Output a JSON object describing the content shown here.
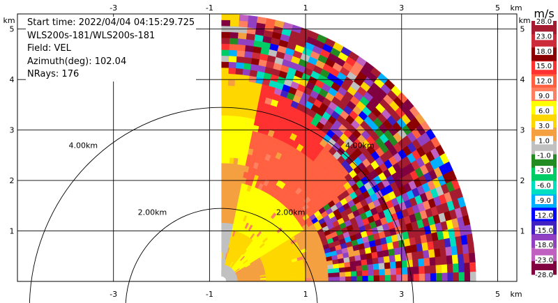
{
  "info": {
    "start_time": "Start time: 2022/04/04 04:15:29.725",
    "instrument": "WLS200s-181/WLS200s-181",
    "field": "Field: VEL",
    "azimuth": "Azimuth(deg): 102.04",
    "nrays": "NRays: 176"
  },
  "chart_data": {
    "type": "heatmap",
    "title": "",
    "xlabel": "km",
    "ylabel": "km",
    "x_ticks": [
      "-3",
      "-1",
      "1",
      "3",
      "5"
    ],
    "x_tick_values": [
      -3,
      -1,
      1,
      3,
      5
    ],
    "y_ticks": [
      "1",
      "2",
      "3",
      "4",
      "5"
    ],
    "y_tick_values": [
      1,
      2,
      3,
      4,
      5
    ],
    "xlim": [
      -5.0,
      5.4
    ],
    "ylim": [
      0,
      5.3
    ],
    "grid": true,
    "range_rings": [
      {
        "radius_km": 2,
        "label": "2.00km"
      },
      {
        "radius_km": 4,
        "label": "4.00km"
      }
    ],
    "sector": {
      "azimuth_start_deg": 0,
      "azimuth_end_deg": 90,
      "max_range_km": 5.3,
      "origin_x_km": -0.75,
      "origin_y_km": 0
    },
    "colorbar": {
      "unit": "m/s",
      "labels": [
        "28.0",
        "23.0",
        "18.0",
        "15.0",
        "12.0",
        "9.0",
        "6.0",
        "3.0",
        "1.0",
        "-1.0",
        "-3.0",
        "-6.0",
        "-9.0",
        "-12.0",
        "-15.0",
        "-18.0",
        "-23.0",
        "-28.0"
      ],
      "colors": [
        "#a51c30",
        "#cc2b3a",
        "#8b0000",
        "#ff3030",
        "#ff6040",
        "#ff8060",
        "#ffff00",
        "#ffd700",
        "#f4a040",
        "#c0c0c0",
        "#228b22",
        "#00cc66",
        "#00e0c0",
        "#00b0ff",
        "#0000ff",
        "#4020c0",
        "#9040c0",
        "#c060c0",
        "#800040"
      ]
    }
  }
}
